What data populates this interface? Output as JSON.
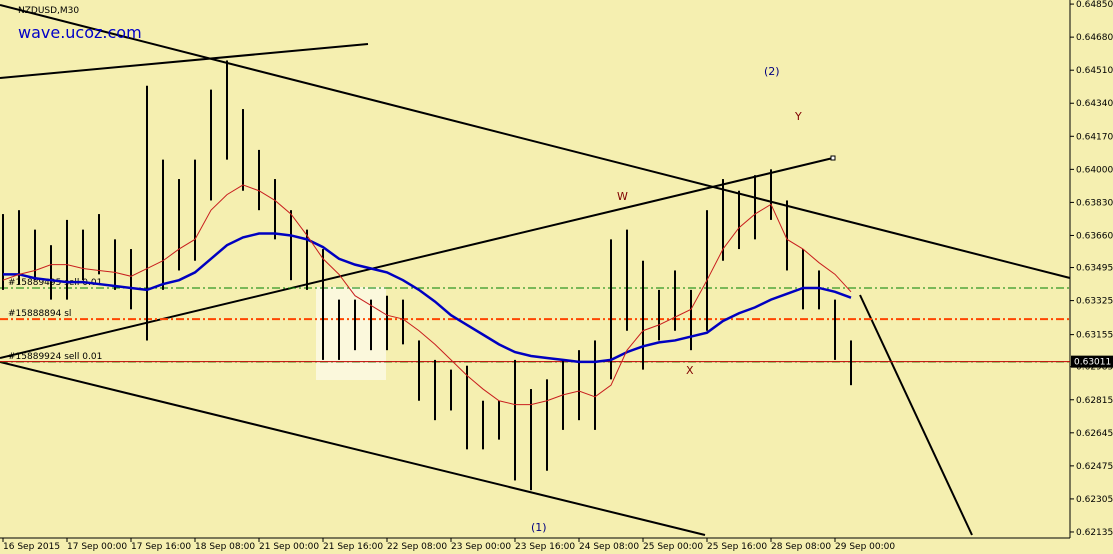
{
  "chart_data": {
    "type": "ohlc",
    "title": "NZDUSD,M30",
    "subtitle": "wave.ucoz.com",
    "categories": [
      "16 Sep 2015",
      null,
      null,
      null,
      "17 Sep 00:00",
      null,
      null,
      null,
      "17 Sep 16:00",
      null,
      null,
      null,
      "18 Sep 08:00",
      null,
      null,
      null,
      "21 Sep 00:00",
      null,
      null,
      null,
      "21 Sep 16:00",
      null,
      null,
      null,
      "22 Sep 08:00",
      null,
      null,
      null,
      "23 Sep 00:00",
      null,
      null,
      null,
      "23 Sep 16:00",
      null,
      null,
      null,
      "24 Sep 08:00",
      null,
      null,
      null,
      "25 Sep 00:00",
      null,
      null,
      null,
      "25 Sep 16:00",
      null,
      null,
      null,
      "28 Sep 08:00",
      null,
      null,
      null,
      "29 Sep 00:00",
      null
    ],
    "high": [
      0.6377,
      0.6379,
      0.6369,
      0.6361,
      0.6374,
      0.6369,
      0.6377,
      0.6364,
      0.6359,
      0.6443,
      0.6405,
      0.6395,
      0.6405,
      0.6441,
      0.6456,
      0.6431,
      0.641,
      0.6395,
      0.6379,
      0.6369,
      0.6359,
      0.6333,
      0.6333,
      0.6333,
      0.6335,
      0.6333,
      0.6312,
      0.6302,
      0.6297,
      0.6299,
      0.6281,
      0.6281,
      0.6302,
      0.6287,
      0.6292,
      0.6302,
      0.6307,
      0.6312,
      0.6364,
      0.6369,
      0.6353,
      0.6338,
      0.6348,
      0.6338,
      0.6379,
      0.6395,
      0.6389,
      0.6397,
      0.64,
      0.6384,
      0.6359,
      0.6348,
      0.6333,
      0.6312
    ],
    "low": [
      0.6338,
      0.6341,
      0.6343,
      0.6333,
      0.6333,
      0.6343,
      0.6346,
      0.6338,
      0.6328,
      0.6312,
      0.6338,
      0.6348,
      0.6353,
      0.6384,
      0.6405,
      0.6389,
      0.6379,
      0.6364,
      0.6343,
      0.6338,
      0.6302,
      0.6302,
      0.6307,
      0.6307,
      0.6307,
      0.631,
      0.6281,
      0.6271,
      0.6276,
      0.6256,
      0.6256,
      0.6261,
      0.624,
      0.6235,
      0.6245,
      0.6266,
      0.6271,
      0.6266,
      0.6292,
      0.6317,
      0.6297,
      0.6312,
      0.6317,
      0.6307,
      0.6317,
      0.6353,
      0.6359,
      0.6364,
      0.6374,
      0.6348,
      0.6328,
      0.6328,
      0.6302,
      0.6289
    ],
    "bar_color": "#000000",
    "ma": [
      {
        "color": "#0000c0",
        "values": [
          0.6346,
          0.6346,
          0.6344,
          0.6343,
          0.6342,
          0.6342,
          0.6341,
          0.634,
          0.6339,
          0.6338,
          0.6341,
          0.6343,
          0.6347,
          0.6354,
          0.6361,
          0.6365,
          0.6367,
          0.6367,
          0.6366,
          0.6364,
          0.636,
          0.6354,
          0.6351,
          0.6349,
          0.6347,
          0.6343,
          0.6338,
          0.6332,
          0.6325,
          0.632,
          0.6315,
          0.631,
          0.6306,
          0.6304,
          0.6303,
          0.6302,
          0.6301,
          0.6301,
          0.6302,
          0.6306,
          0.6309,
          0.6311,
          0.6312,
          0.6314,
          0.6316,
          0.6322,
          0.6326,
          0.6329,
          0.6333,
          0.6336,
          0.6339,
          0.6339,
          0.6337,
          0.6334
        ]
      },
      {
        "color": "#c81e1e",
        "values": [
          0.6343,
          0.6346,
          0.6348,
          0.6351,
          0.6351,
          0.6349,
          0.6348,
          0.6347,
          0.6345,
          0.6349,
          0.6353,
          0.6359,
          0.6364,
          0.6379,
          0.6387,
          0.6392,
          0.6389,
          0.6384,
          0.6377,
          0.6366,
          0.6354,
          0.6346,
          0.6335,
          0.633,
          0.6325,
          0.6323,
          0.6317,
          0.631,
          0.6302,
          0.6294,
          0.6287,
          0.6281,
          0.6279,
          0.6279,
          0.6281,
          0.6284,
          0.6286,
          0.6283,
          0.6289,
          0.6307,
          0.6317,
          0.632,
          0.6324,
          0.6328,
          0.6343,
          0.6359,
          0.637,
          0.6377,
          0.6382,
          0.6364,
          0.6359,
          0.6352,
          0.6346,
          0.6337
        ]
      }
    ],
    "levels": [
      {
        "name": "#15889495 sell 0.01",
        "value": 0.6339,
        "color": "#008000"
      },
      {
        "name": "#15888894 sl",
        "value": 0.6323,
        "color": "#ff4500"
      },
      {
        "name": "#15889924 sell 0.01",
        "value": 0.6301,
        "color": "#008000"
      }
    ],
    "last_price": 0.63011,
    "annotations": [
      "(2)",
      "Y",
      "W",
      "X",
      "(1)"
    ],
    "ylim": [
      0.62104,
      0.64871
    ],
    "yticks": [
      {
        "value": 0.6485,
        "label": "0.64850"
      },
      {
        "value": 0.6468,
        "label": "0.64680"
      },
      {
        "value": 0.6451,
        "label": "0.64510"
      },
      {
        "value": 0.6434,
        "label": "0.64340"
      },
      {
        "value": 0.6417,
        "label": "0.64170"
      },
      {
        "value": 0.64,
        "label": "0.64000"
      },
      {
        "value": 0.6383,
        "label": "0.63830"
      },
      {
        "value": 0.6366,
        "label": "0.63660"
      },
      0.63495,
      0.63325,
      {
        "value": 0.6315,
        "label": "0.63155"
      },
      0.62985,
      0.62815,
      0.62645,
      0.62475,
      0.62305,
      0.62135
    ]
  }
}
